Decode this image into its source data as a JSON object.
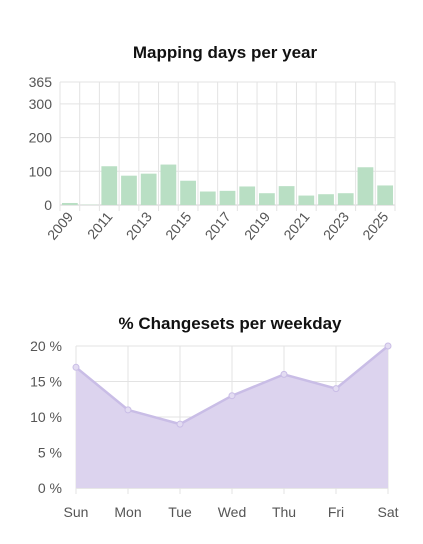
{
  "chart_data": [
    {
      "type": "bar",
      "title": "Mapping days per year",
      "categories": [
        "2009",
        "2010",
        "2011",
        "2012",
        "2013",
        "2014",
        "2015",
        "2016",
        "2017",
        "2018",
        "2019",
        "2020",
        "2021",
        "2022",
        "2023",
        "2024",
        "2025"
      ],
      "x_tick_labels": [
        "2009",
        "2011",
        "2013",
        "2015",
        "2017",
        "2019",
        "2021",
        "2023",
        "2025"
      ],
      "values": [
        6,
        1,
        115,
        87,
        93,
        120,
        72,
        40,
        42,
        55,
        35,
        56,
        28,
        32,
        35,
        112,
        58
      ],
      "ylim": [
        0,
        365
      ],
      "y_ticks": [
        0,
        100,
        200,
        300,
        365
      ],
      "grid": true,
      "color": "#b9dfc4",
      "legend": "none"
    },
    {
      "type": "area",
      "title": "% Changesets per weekday",
      "categories": [
        "Sun",
        "Mon",
        "Tue",
        "Wed",
        "Thu",
        "Fri",
        "Sat"
      ],
      "values": [
        17,
        11,
        9,
        13,
        16,
        14,
        20
      ],
      "ylim": [
        0,
        20
      ],
      "y_ticks": [
        0,
        5,
        10,
        15,
        20
      ],
      "y_tick_suffix": " %",
      "grid": true,
      "fill_color": "#dcd3ee",
      "line_color": "#c9bde6",
      "legend": "none"
    }
  ]
}
